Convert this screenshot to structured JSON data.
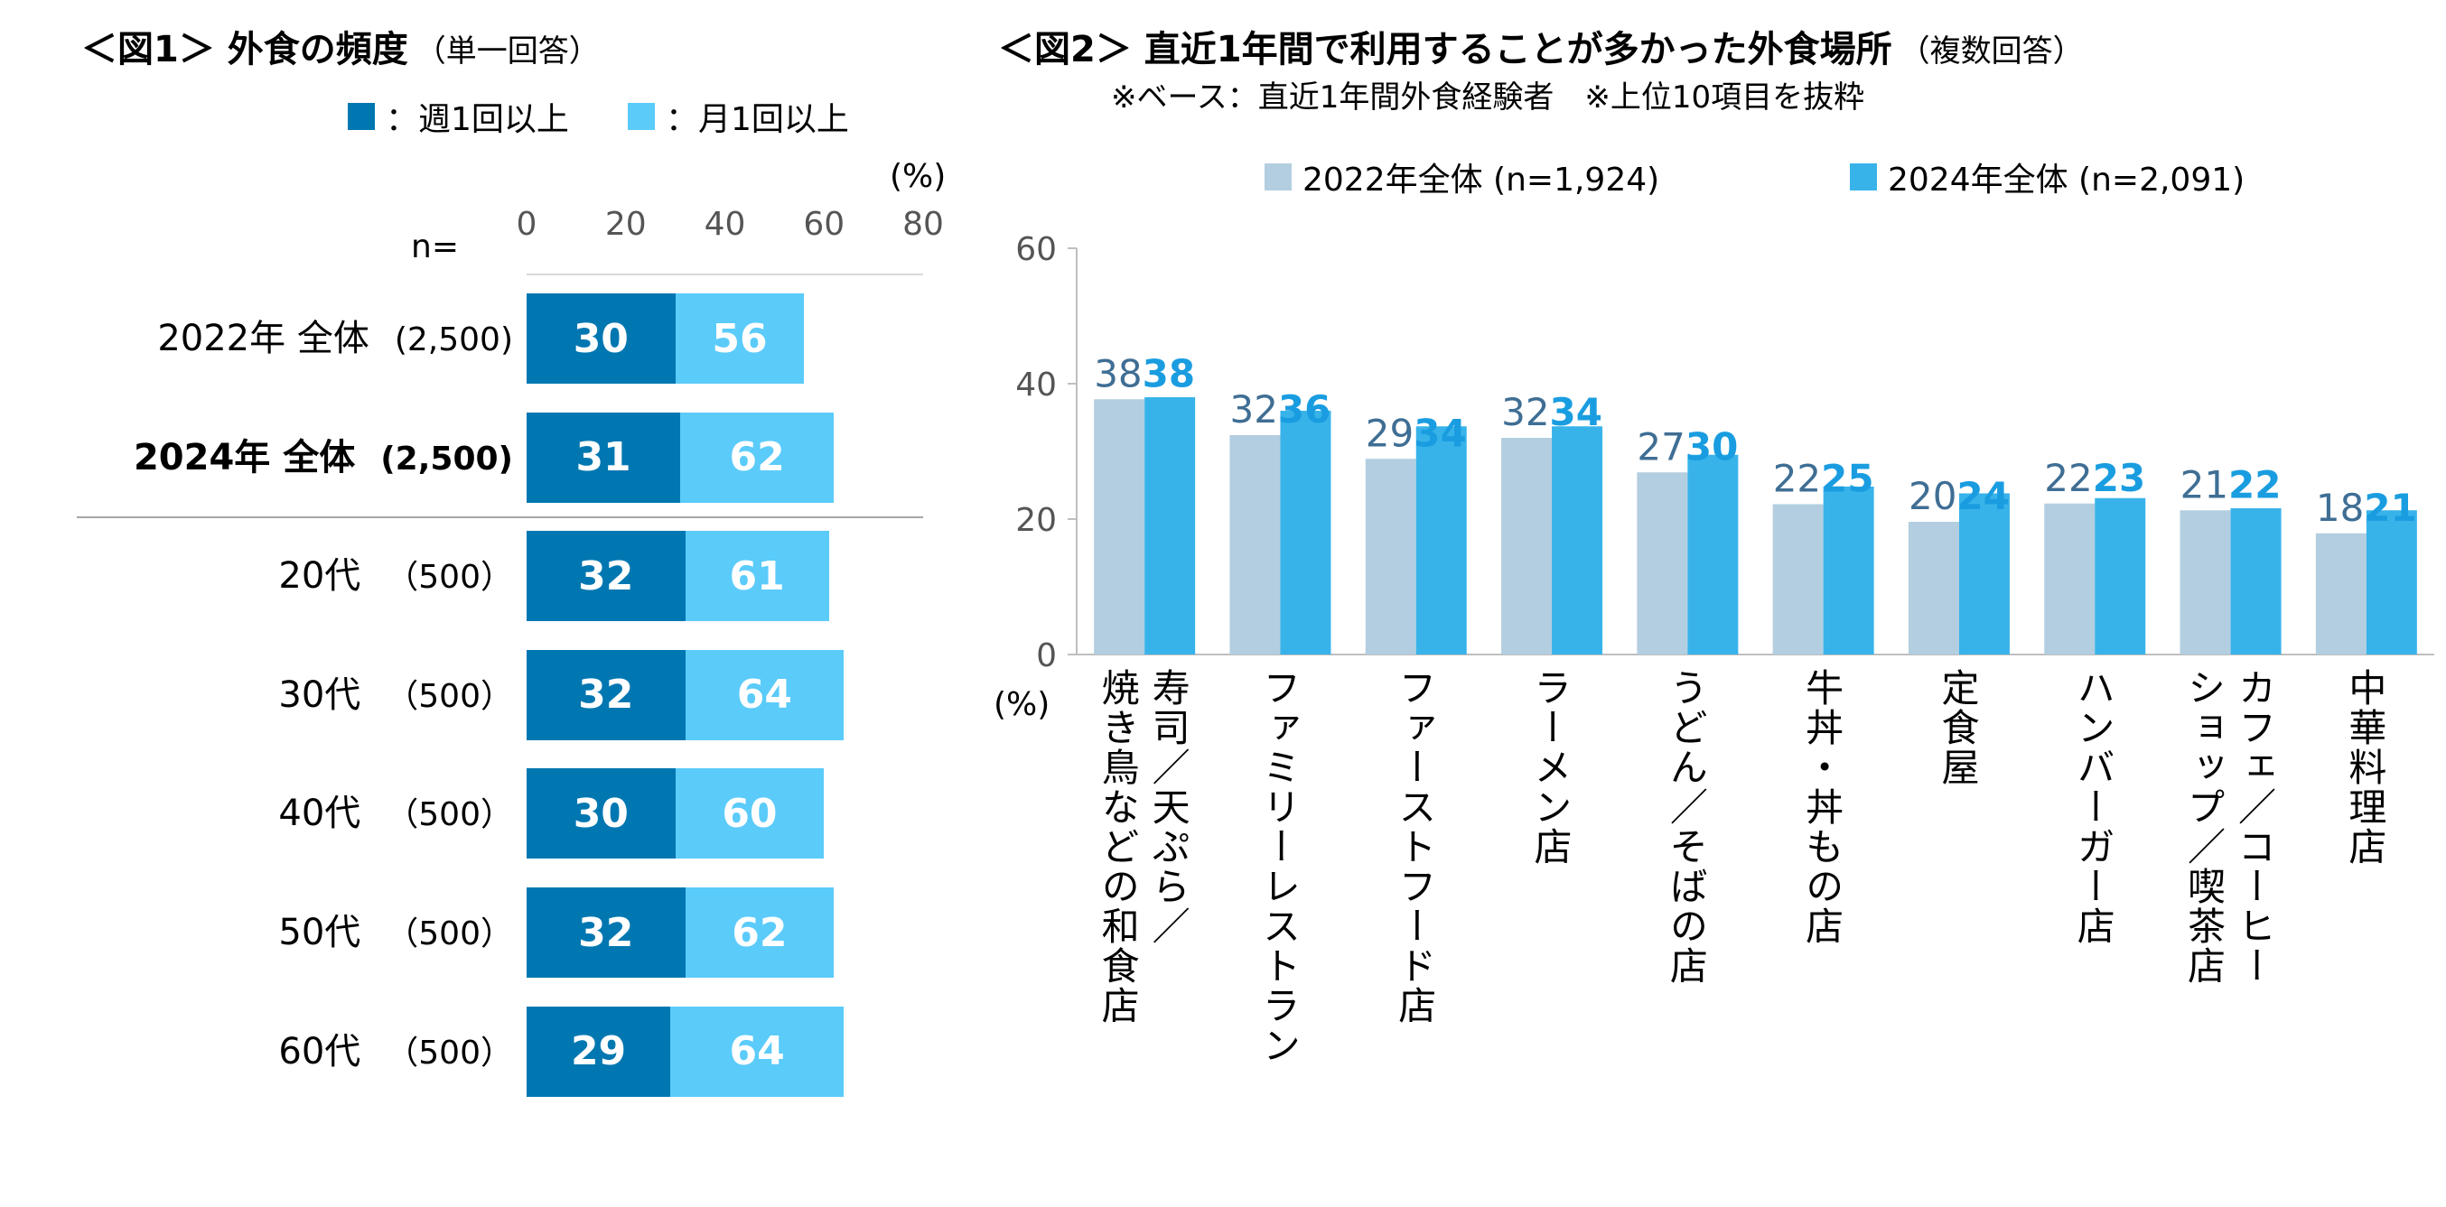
{
  "fig1": {
    "title": "＜図1＞ 外食の頻度",
    "subtitle": "（単一回答）",
    "legend": [
      {
        "label": "：週1回以上",
        "color": "#0077b1"
      },
      {
        "label": "：月1回以上",
        "color": "#5bcbfa"
      }
    ],
    "unit": "(%)",
    "n_label": "n=",
    "chart_data": {
      "type": "bar",
      "orientation": "horizontal",
      "xlim": [
        0,
        80
      ],
      "ticks": [
        "0",
        "20",
        "40",
        "60",
        "80"
      ],
      "rows": [
        {
          "label": "2022年 全体",
          "n": "(2,500)",
          "weekly": 30,
          "monthly": 56,
          "bold": false
        },
        {
          "label": "2024年 全体",
          "n": "(2,500)",
          "weekly": 31,
          "monthly": 62,
          "bold": true
        },
        {
          "label": "20代",
          "n": "（500）",
          "weekly": 32,
          "monthly": 61,
          "bold": false
        },
        {
          "label": "30代",
          "n": "（500）",
          "weekly": 32,
          "monthly": 64,
          "bold": false
        },
        {
          "label": "40代",
          "n": "（500）",
          "weekly": 30,
          "monthly": 60,
          "bold": false
        },
        {
          "label": "50代",
          "n": "（500）",
          "weekly": 32,
          "monthly": 62,
          "bold": false
        },
        {
          "label": "60代",
          "n": "（500）",
          "weekly": 29,
          "monthly": 64,
          "bold": false
        }
      ]
    }
  },
  "fig2": {
    "title": "＜図2＞ 直近1年間で利用することが多かった外食場所",
    "subtitle": "（複数回答）",
    "note": "※ベース：直近1年間外食経験者　※上位10項目を抜粋",
    "unit": "(%)",
    "chart_data": {
      "type": "bar",
      "ylim": [
        0,
        60
      ],
      "yticks": [
        "0",
        "20",
        "40",
        "60"
      ],
      "categories": [
        "寿司／天ぷら／焼き鳥などの和食店",
        "ファミリーレストラン",
        "ファーストフード店",
        "ラーメン店",
        "うどん／そばの店",
        "牛丼・丼もの店",
        "定食屋",
        "ハンバーガー店",
        "カフェ／コーヒーショップ／喫茶店",
        "中華料理店"
      ],
      "category_lines": [
        [
          "寿司／天ぷら／",
          "焼き鳥などの和食店"
        ],
        [
          "ファミリーレストラン"
        ],
        [
          "ファーストフード店"
        ],
        [
          "ラーメン店"
        ],
        [
          "うどん／そばの店"
        ],
        [
          "牛丼・丼もの店"
        ],
        [
          "定食屋"
        ],
        [
          "ハンバーガー店"
        ],
        [
          "カフェ／コーヒー",
          "ショップ／喫茶店"
        ],
        [
          "中華料理店"
        ]
      ],
      "series": [
        {
          "name": "2022年全体 (n=1,924)",
          "color": "#b3cee0",
          "label_color": "#3f6e94",
          "values": [
            37.7,
            32.4,
            28.9,
            32.0,
            26.9,
            22.2,
            19.6,
            22.3,
            21.3,
            17.9
          ],
          "labels": [
            "38",
            "32",
            "29",
            "32",
            "27",
            "22",
            "20",
            "22",
            "21",
            "18"
          ]
        },
        {
          "name": "2024年全体 (n=2,091)",
          "color": "#38b3ea",
          "label_color": "#1a9de0",
          "values": [
            38.0,
            36.0,
            33.7,
            33.7,
            29.5,
            24.8,
            23.8,
            23.1,
            21.6,
            21.3
          ],
          "labels": [
            "38",
            "36",
            "34",
            "34",
            "30",
            "25",
            "24",
            "23",
            "22",
            "21"
          ]
        }
      ]
    }
  }
}
